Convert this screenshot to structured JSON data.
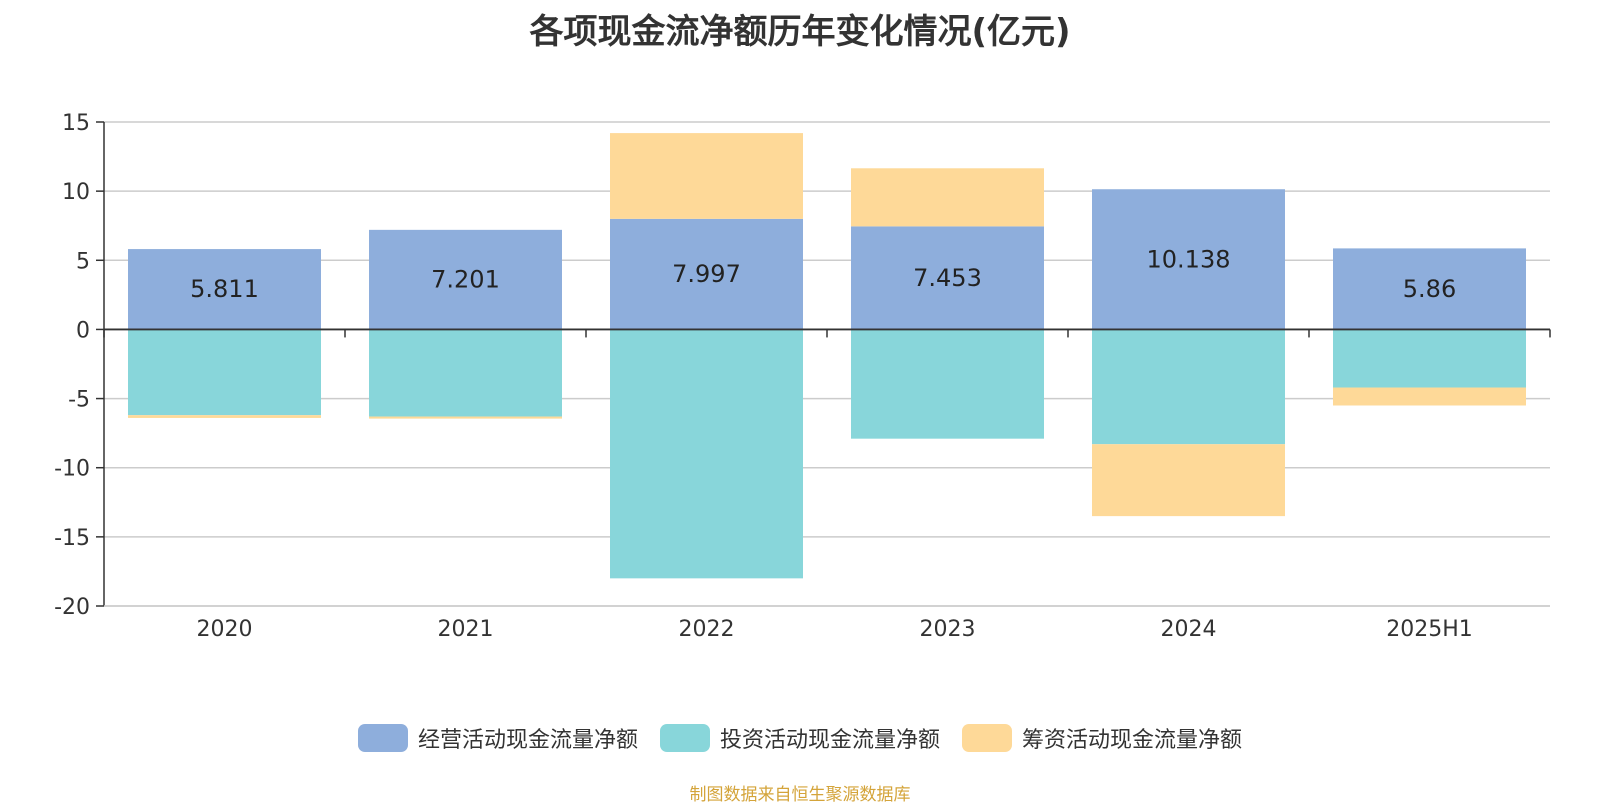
{
  "chart_data": {
    "type": "bar",
    "stacked": true,
    "title": "各项现金流净额历年变化情况(亿元)",
    "categories": [
      "2020",
      "2021",
      "2022",
      "2023",
      "2024",
      "2025H1"
    ],
    "series": [
      {
        "name": "经营活动现金流量净额",
        "color": "#8eaedc",
        "values": [
          5.811,
          7.201,
          7.997,
          7.453,
          10.138,
          5.86
        ]
      },
      {
        "name": "投资活动现金流量净额",
        "color": "#88d6da",
        "values": [
          -6.2,
          -6.3,
          -18.0,
          -7.9,
          -8.3,
          -4.2
        ]
      },
      {
        "name": "筹资活动现金流量净额",
        "color": "#fed998",
        "values": [
          -0.2,
          -0.15,
          6.2,
          4.2,
          -5.2,
          -1.3
        ]
      }
    ],
    "data_labels": [
      "5.811",
      "7.201",
      "7.997",
      "7.453",
      "10.138",
      "5.86"
    ],
    "y_ticks": [
      "15",
      "10",
      "5",
      "0",
      "-5",
      "-10",
      "-15",
      "-20"
    ],
    "ylim": [
      -20,
      15
    ],
    "grid": true,
    "legend": "bottom",
    "source": "制图数据来自恒生聚源数据库"
  }
}
